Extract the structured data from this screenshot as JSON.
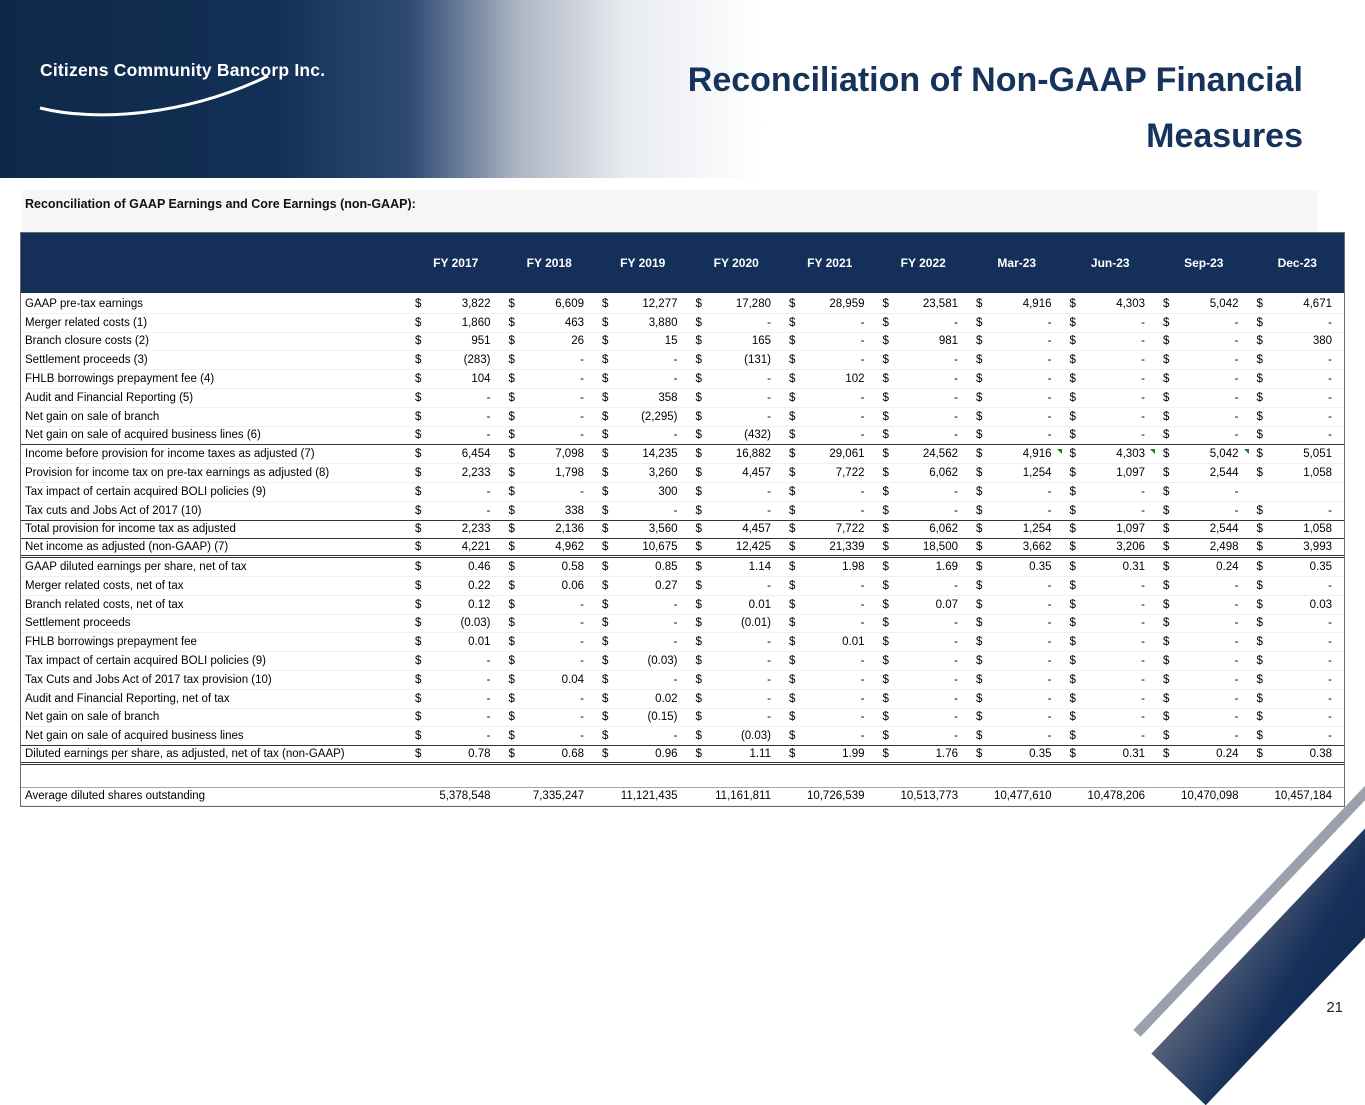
{
  "slide": {
    "logo_text": "Citizens Community Bancorp Inc.",
    "title_line1": "Reconciliation of Non-GAAP Financial",
    "title_line2": "Measures",
    "section_heading": "Reconciliation of GAAP Earnings and Core Earnings (non-GAAP):",
    "page_number": "21"
  },
  "colors": {
    "navy": "#14305A",
    "banner_dark": "#0E2947",
    "stripe_gray": "#9AA1AC",
    "comment_marker_green": "#1F7A1F"
  },
  "table": {
    "currency_symbol": "$",
    "columns": [
      "FY 2017",
      "FY 2018",
      "FY 2019",
      "FY 2020",
      "FY 2021",
      "FY 2022",
      "Mar-23",
      "Jun-23",
      "Sep-23",
      "Dec-23"
    ],
    "rows": [
      {
        "label": "GAAP pre-tax earnings",
        "dollar": true,
        "values": [
          "3,822",
          "6,609",
          "12,277",
          "17,280",
          "28,959",
          "23,581",
          "4,916",
          "4,303",
          "5,042",
          "4,671"
        ]
      },
      {
        "label": "Merger related costs (1)",
        "dollar": true,
        "values": [
          "1,860",
          "463",
          "3,880",
          "-",
          "-",
          "-",
          "-",
          "-",
          "-",
          "-"
        ]
      },
      {
        "label": "Branch closure costs (2)",
        "dollar": true,
        "values": [
          "951",
          "26",
          "15",
          "165",
          "-",
          "981",
          "-",
          "-",
          "-",
          "380"
        ]
      },
      {
        "label": "Settlement proceeds (3)",
        "dollar": true,
        "values": [
          "(283)",
          "-",
          "-",
          "(131)",
          "-",
          "-",
          "-",
          "-",
          "-",
          "-"
        ]
      },
      {
        "label": "FHLB borrowings prepayment fee (4)",
        "dollar": true,
        "values": [
          "104",
          "-",
          "-",
          "-",
          "102",
          "-",
          "-",
          "-",
          "-",
          "-"
        ]
      },
      {
        "label": "Audit and Financial Reporting (5)",
        "dollar": true,
        "values": [
          "-",
          "-",
          "358",
          "-",
          "-",
          "-",
          "-",
          "-",
          "-",
          "-"
        ]
      },
      {
        "label": "Net gain on sale of branch",
        "dollar": true,
        "values": [
          "-",
          "-",
          "(2,295)",
          "-",
          "-",
          "-",
          "-",
          "-",
          "-",
          "-"
        ]
      },
      {
        "label": "Net gain on sale of acquired business lines (6)",
        "dollar": true,
        "border": "single",
        "values": [
          "-",
          "-",
          "-",
          "(432)",
          "-",
          "-",
          "-",
          "-",
          "-",
          "-"
        ]
      },
      {
        "label": "Income before provision for income taxes as adjusted (7)",
        "dollar": true,
        "markers": [
          6,
          7,
          8
        ],
        "values": [
          "6,454",
          "7,098",
          "14,235",
          "16,882",
          "29,061",
          "24,562",
          "4,916",
          "4,303",
          "5,042",
          "5,051"
        ]
      },
      {
        "label": "Provision for income tax on pre-tax earnings as adjusted (8)",
        "dollar": true,
        "values": [
          "2,233",
          "1,798",
          "3,260",
          "4,457",
          "7,722",
          "6,062",
          "1,254",
          "1,097",
          "2,544",
          "1,058"
        ]
      },
      {
        "label": "Tax impact of certain acquired BOLI policies (9)",
        "dollar": true,
        "values": [
          "-",
          "-",
          "300",
          "-",
          "-",
          "-",
          "-",
          "-",
          "-",
          ""
        ]
      },
      {
        "label": "Tax cuts and Jobs Act of 2017 (10)",
        "dollar": true,
        "border": "single",
        "values": [
          "-",
          "338",
          "-",
          "-",
          "-",
          "-",
          "-",
          "-",
          "-",
          "-"
        ]
      },
      {
        "label": "Total provision for income tax as adjusted",
        "dollar": true,
        "border": "single",
        "values": [
          "2,233",
          "2,136",
          "3,560",
          "4,457",
          "7,722",
          "6,062",
          "1,254",
          "1,097",
          "2,544",
          "1,058"
        ]
      },
      {
        "label": "Net income as adjusted  (non-GAAP) (7)",
        "dollar": true,
        "border": "double",
        "values": [
          "4,221",
          "4,962",
          "10,675",
          "12,425",
          "21,339",
          "18,500",
          "3,662",
          "3,206",
          "2,498",
          "3,993"
        ]
      },
      {
        "label": "GAAP diluted earnings per share, net of tax",
        "dollar": true,
        "values": [
          "0.46",
          "0.58",
          "0.85",
          "1.14",
          "1.98",
          "1.69",
          "0.35",
          "0.31",
          "0.24",
          "0.35"
        ]
      },
      {
        "label": "Merger related costs, net of tax",
        "dollar": true,
        "values": [
          "0.22",
          "0.06",
          "0.27",
          "-",
          "-",
          "-",
          "-",
          "-",
          "-",
          "-"
        ]
      },
      {
        "label": "Branch related costs, net of tax",
        "dollar": true,
        "values": [
          "0.12",
          "-",
          "-",
          "0.01",
          "-",
          "0.07",
          "-",
          "-",
          "-",
          "0.03"
        ]
      },
      {
        "label": "Settlement proceeds",
        "dollar": true,
        "values": [
          "(0.03)",
          "-",
          "-",
          "(0.01)",
          "-",
          "-",
          "-",
          "-",
          "-",
          "-"
        ]
      },
      {
        "label": "FHLB borrowings prepayment fee",
        "dollar": true,
        "values": [
          "0.01",
          "-",
          "-",
          "-",
          "0.01",
          "-",
          "-",
          "-",
          "-",
          "-"
        ]
      },
      {
        "label": "Tax impact of certain acquired BOLI policies (9)",
        "dollar": true,
        "values": [
          "-",
          "-",
          "(0.03)",
          "-",
          "-",
          "-",
          "-",
          "-",
          "-",
          "-"
        ]
      },
      {
        "label": "Tax Cuts and Jobs Act of 2017 tax provision (10)",
        "dollar": true,
        "values": [
          "-",
          "0.04",
          "-",
          "-",
          "-",
          "-",
          "-",
          "-",
          "-",
          "-"
        ]
      },
      {
        "label": "Audit and Financial Reporting, net of tax",
        "dollar": true,
        "values": [
          "-",
          "-",
          "0.02",
          "-",
          "-",
          "-",
          "-",
          "-",
          "-",
          "-"
        ]
      },
      {
        "label": "Net gain on sale of branch",
        "dollar": true,
        "values": [
          "-",
          "-",
          "(0.15)",
          "-",
          "-",
          "-",
          "-",
          "-",
          "-",
          "-"
        ]
      },
      {
        "label": "Net gain on sale of acquired business lines",
        "dollar": true,
        "border": "single",
        "values": [
          "-",
          "-",
          "-",
          "(0.03)",
          "-",
          "-",
          "-",
          "-",
          "-",
          "-"
        ]
      },
      {
        "label": "Diluted earnings per share, as adjusted, net of tax (non-GAAP)",
        "dollar": true,
        "border": "double",
        "values": [
          "0.78",
          "0.68",
          "0.96",
          "1.11",
          "1.99",
          "1.76",
          "0.35",
          "0.31",
          "0.24",
          "0.38"
        ]
      },
      {
        "label": "",
        "spacer": true,
        "dollar": false,
        "values": []
      },
      {
        "label": "Average diluted shares outstanding",
        "dollar": false,
        "border_top": true,
        "values": [
          "5,378,548",
          "7,335,247",
          "11,121,435",
          "11,161,811",
          "10,726,539",
          "10,513,773",
          "10,477,610",
          "10,478,206",
          "10,470,098",
          "10,457,184"
        ]
      }
    ]
  }
}
